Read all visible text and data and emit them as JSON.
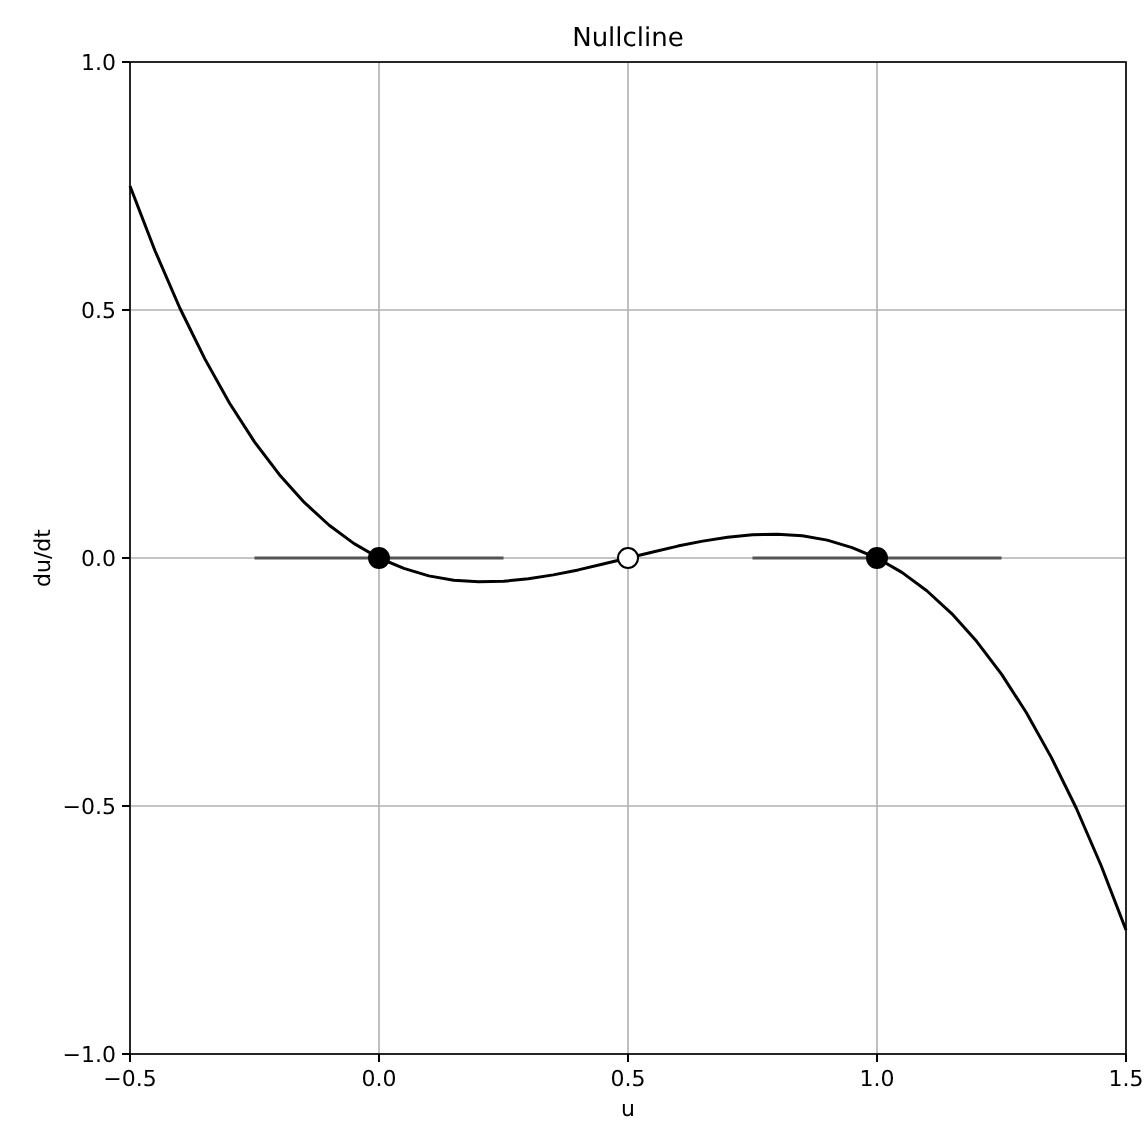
{
  "chart_data": {
    "type": "line",
    "title": "Nullcline",
    "xlabel": "u",
    "ylabel": "du/dt",
    "xlim": [
      -0.5,
      1.5
    ],
    "ylim": [
      -1.0,
      1.0
    ],
    "xticks": [
      {
        "value": -0.5,
        "label": "−0.5"
      },
      {
        "value": 0,
        "label": "0.0"
      },
      {
        "value": 0.5,
        "label": "0.5"
      },
      {
        "value": 1,
        "label": "1.0"
      },
      {
        "value": 1.5,
        "label": "1.5"
      }
    ],
    "yticks": [
      {
        "value": -1,
        "label": "−1.0"
      },
      {
        "value": -0.5,
        "label": "−0.5"
      },
      {
        "value": 0,
        "label": "0.0"
      },
      {
        "value": 0.5,
        "label": "0.5"
      },
      {
        "value": 1,
        "label": "1.0"
      }
    ],
    "grid": true,
    "series": [
      {
        "color": "#555555",
        "x": [
          -0.25,
          0.25
        ],
        "values": [
          0,
          0
        ]
      },
      {
        "color": "#555555",
        "x": [
          0.75,
          1.25
        ],
        "values": [
          0,
          0
        ]
      },
      {
        "color": "#000000",
        "x": [
          -0.5,
          -0.45,
          -0.4,
          -0.35,
          -0.3,
          -0.25,
          -0.2,
          -0.15,
          -0.1,
          -0.05,
          0,
          0.05,
          0.1,
          0.15,
          0.2,
          0.25,
          0.3,
          0.35,
          0.4,
          0.45,
          0.5,
          0.55,
          0.6,
          0.65,
          0.7,
          0.75,
          0.8,
          0.85,
          0.9,
          0.95,
          1,
          1.05,
          1.1,
          1.15,
          1.2,
          1.25,
          1.3,
          1.35,
          1.4,
          1.45,
          1.5
        ],
        "values": [
          0.75,
          0.62,
          0.504,
          0.402,
          0.312,
          0.234,
          0.168,
          0.112,
          0.066,
          0.029,
          0,
          -0.021,
          -0.036,
          -0.045,
          -0.048,
          -0.047,
          -0.042,
          -0.034,
          -0.024,
          -0.012,
          0,
          0.012,
          0.024,
          0.034,
          0.042,
          0.047,
          0.048,
          0.045,
          0.036,
          0.021,
          0,
          -0.029,
          -0.066,
          -0.112,
          -0.168,
          -0.234,
          -0.312,
          -0.402,
          -0.504,
          -0.62,
          -0.75
        ]
      },
      {
        "type": "scatter",
        "color": "#000000",
        "marker": "circle",
        "x": [
          0,
          1
        ],
        "values": [
          0,
          0
        ]
      },
      {
        "type": "scatter",
        "color": "#ffffff",
        "marker": "circle",
        "x": [
          0.5
        ],
        "values": [
          0
        ]
      }
    ]
  }
}
